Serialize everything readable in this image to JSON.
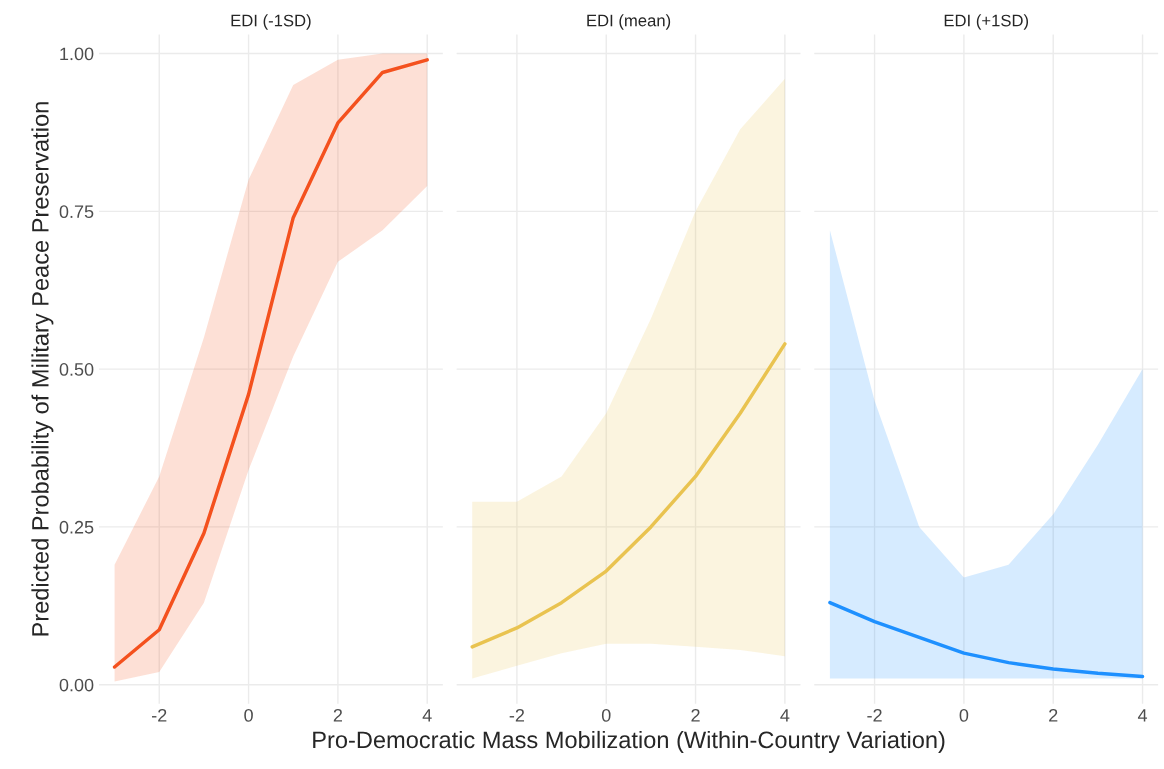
{
  "chart_data": [
    {
      "type": "line",
      "title": "EDI (-1SD)",
      "ylabel": "Predicted Probability of Military Peace Preservation",
      "x": [
        -3,
        -2,
        -1,
        0,
        1,
        2,
        3,
        4
      ],
      "xlim": [
        -3.35,
        4.35
      ],
      "xticks": [
        -2,
        0,
        2,
        4
      ],
      "ylim": [
        -0.03,
        1.03
      ],
      "yticks": [
        {
          "value": 0,
          "label": "0.00"
        },
        {
          "value": 0.25,
          "label": "0.25"
        },
        {
          "value": 0.5,
          "label": "0.50"
        },
        {
          "value": 0.75,
          "label": "0.75"
        },
        {
          "value": 1,
          "label": "1.00"
        }
      ],
      "grid": true,
      "series": [
        {
          "color": "#f4511e",
          "values": [
            0.028,
            0.087,
            0.24,
            0.46,
            0.74,
            0.89,
            0.97,
            0.99
          ],
          "lower": [
            0.005,
            0.02,
            0.13,
            0.34,
            0.52,
            0.67,
            0.72,
            0.79
          ],
          "upper": [
            0.19,
            0.33,
            0.55,
            0.8,
            0.95,
            0.99,
            1.0,
            1.0
          ]
        }
      ]
    },
    {
      "type": "line",
      "title": "EDI (mean)",
      "xlabel": "Pro-Democratic Mass Mobilization (Within-Country Variation)",
      "x": [
        -3,
        -2,
        -1,
        0,
        1,
        2,
        3,
        4
      ],
      "xlim": [
        -3.35,
        4.35
      ],
      "xticks": [
        -2,
        0,
        2,
        4
      ],
      "ylim": [
        -0.03,
        1.03
      ],
      "yticks": [
        0,
        0.25,
        0.5,
        0.75,
        1
      ],
      "tick_labels": "x",
      "grid": true,
      "series": [
        {
          "color": "#e9c350",
          "values": [
            0.06,
            0.09,
            0.13,
            0.18,
            0.25,
            0.33,
            0.43,
            0.54
          ],
          "lower": [
            0.01,
            0.03,
            0.05,
            0.065,
            0.065,
            0.06,
            0.055,
            0.045
          ],
          "upper": [
            0.29,
            0.29,
            0.33,
            0.43,
            0.58,
            0.75,
            0.88,
            0.96
          ]
        }
      ]
    },
    {
      "type": "line",
      "title": "EDI (+1SD)",
      "x": [
        -3,
        -2,
        -1,
        0,
        1,
        2,
        3,
        4
      ],
      "xlim": [
        -3.35,
        4.35
      ],
      "xticks": [
        -2,
        0,
        2,
        4
      ],
      "ylim": [
        -0.03,
        1.03
      ],
      "yticks": [
        0,
        0.25,
        0.5,
        0.75,
        1
      ],
      "tick_labels": "x",
      "grid": true,
      "series": [
        {
          "color": "#1e90ff",
          "values": [
            0.13,
            0.1,
            0.075,
            0.05,
            0.035,
            0.025,
            0.018,
            0.013
          ],
          "lower": [
            0.01,
            0.01,
            0.01,
            0.01,
            0.01,
            0.01,
            0.01,
            0.01
          ],
          "upper": [
            0.72,
            0.45,
            0.25,
            0.17,
            0.19,
            0.27,
            0.38,
            0.5
          ]
        }
      ]
    }
  ]
}
